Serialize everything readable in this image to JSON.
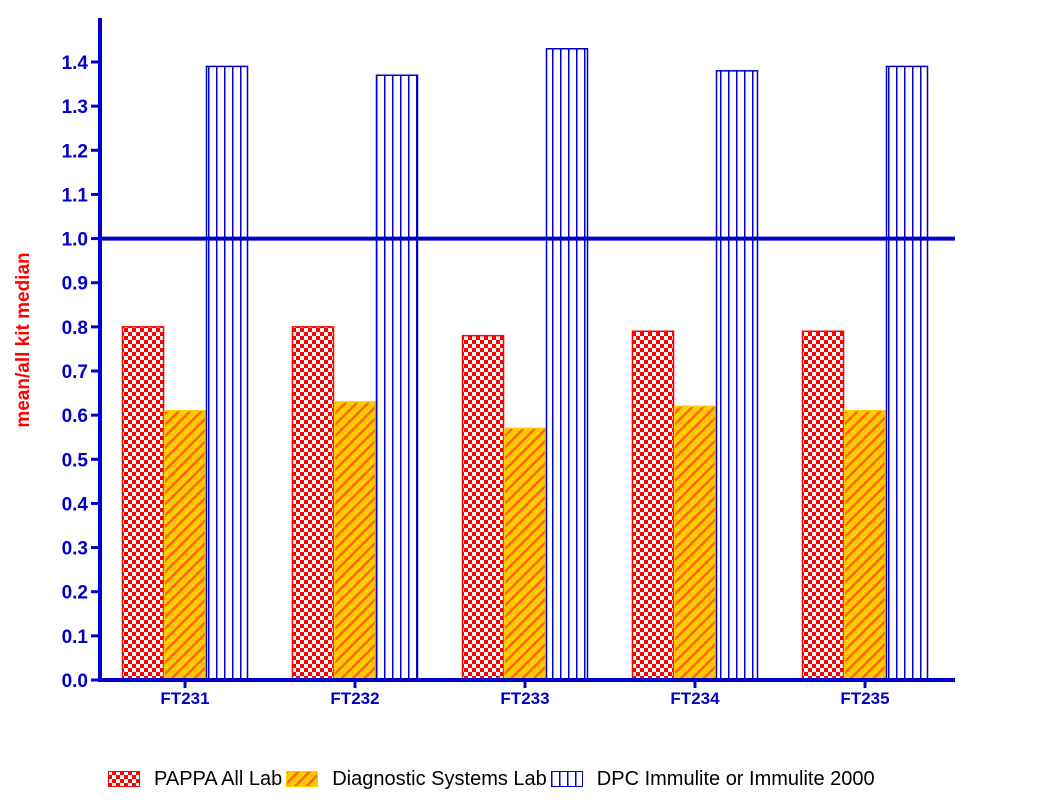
{
  "chart_data": {
    "type": "bar",
    "title": "",
    "xlabel": "",
    "ylabel": "mean/all kit median",
    "ylim": [
      0,
      1.5
    ],
    "yticks": [
      "0.0",
      "0.1",
      "0.2",
      "0.3",
      "0.4",
      "0.5",
      "0.6",
      "0.7",
      "0.8",
      "0.9",
      "1.0",
      "1.1",
      "1.2",
      "1.3",
      "1.4"
    ],
    "categories": [
      "FT231",
      "FT232",
      "FT233",
      "FT234",
      "FT235"
    ],
    "series": [
      {
        "name": "PAPPA All Lab",
        "values": [
          0.8,
          0.8,
          0.78,
          0.79,
          0.79
        ],
        "pattern": "checker",
        "color": "#ff0000"
      },
      {
        "name": "Diagnostic Systems Lab",
        "values": [
          0.61,
          0.63,
          0.57,
          0.62,
          0.61
        ],
        "pattern": "diagonal",
        "color": "#ffcc00"
      },
      {
        "name": "DPC Immulite or Immulite 2000",
        "values": [
          1.39,
          1.37,
          1.43,
          1.38,
          1.39
        ],
        "pattern": "vertical",
        "color": "#0000cc"
      }
    ],
    "reference_line": 1.0,
    "axis_color": "#0000cc",
    "ylabel_color": "#ff0000",
    "grid": false,
    "legend_position": "bottom"
  }
}
